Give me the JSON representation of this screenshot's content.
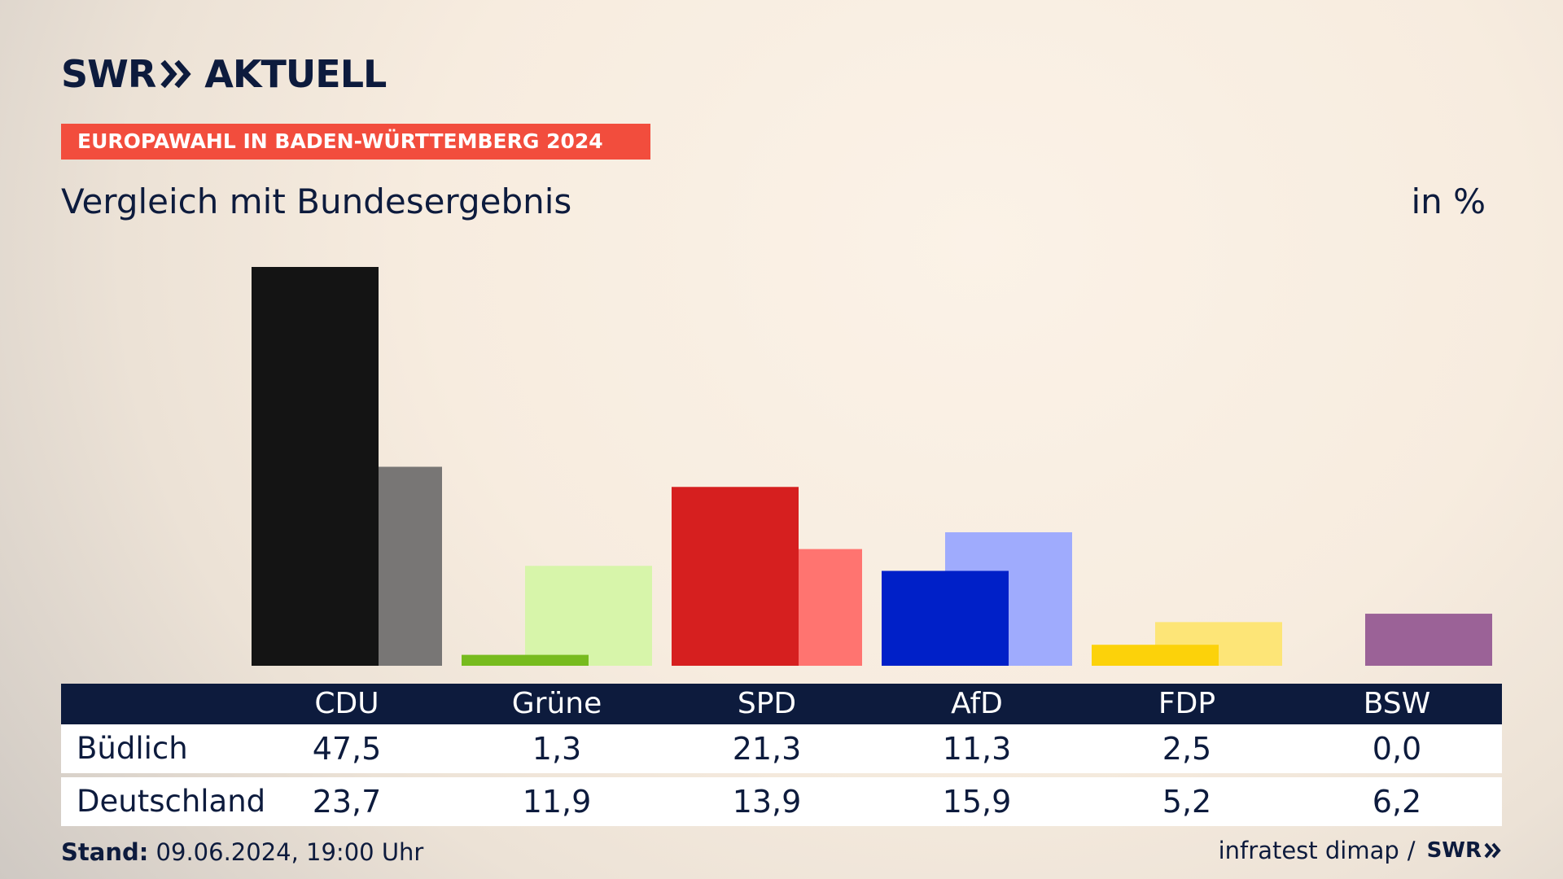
{
  "header": {
    "logo_left": "SWR",
    "logo_right": "AKTUELL",
    "banner": "EUROPAWAHL IN BADEN-WÜRTTEMBERG 2024",
    "subtitle": "Vergleich mit Bundesergebnis",
    "unit": "in %"
  },
  "chart_data": {
    "type": "bar",
    "title": "Vergleich mit Bundesergebnis",
    "ylabel": "in %",
    "ylim": [
      0,
      47.5
    ],
    "grid": false,
    "categories": [
      "CDU",
      "Grüne",
      "SPD",
      "AfD",
      "FDP",
      "BSW"
    ],
    "series": [
      {
        "name": "Büdlich",
        "values": [
          47.5,
          1.3,
          21.3,
          11.3,
          2.5,
          0.0
        ],
        "colors": [
          "#141414",
          "#77bb1e",
          "#d61f1f",
          "#0020c8",
          "#fcd20a",
          "#9b6297"
        ]
      },
      {
        "name": "Deutschland",
        "values": [
          23.7,
          11.9,
          13.9,
          15.9,
          5.2,
          6.2
        ],
        "colors": [
          "#787675",
          "#d7f5aa",
          "#ff7470",
          "#9fabfd",
          "#fde577",
          "#9b6297"
        ]
      }
    ]
  },
  "table": {
    "rows": [
      {
        "label": "Büdlich",
        "values": [
          "47,5",
          "1,3",
          "21,3",
          "11,3",
          "2,5",
          "0,0"
        ]
      },
      {
        "label": "Deutschland",
        "values": [
          "23,7",
          "11,9",
          "13,9",
          "15,9",
          "5,2",
          "6,2"
        ]
      }
    ]
  },
  "footer": {
    "stand_label": "Stand:",
    "stand_value": "09.06.2024, 19:00 Uhr",
    "source": "infratest dimap",
    "separator": "/",
    "source_logo": "SWR"
  }
}
